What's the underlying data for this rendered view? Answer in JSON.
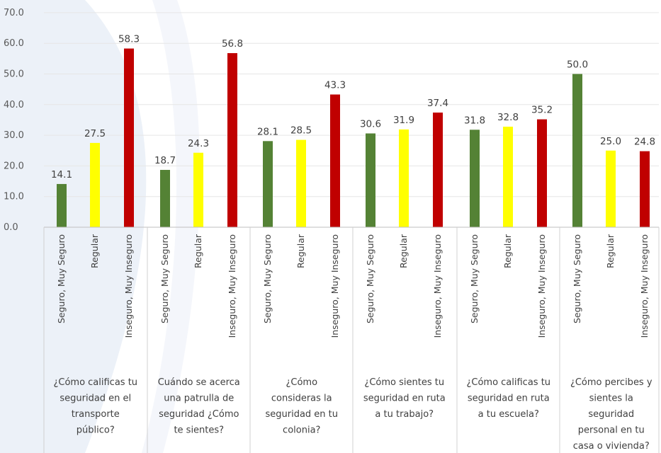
{
  "chart_data": {
    "type": "bar",
    "title": "",
    "xlabel": "",
    "ylabel": "",
    "ylim": [
      0,
      70
    ],
    "yticks": [
      "0.0",
      "10.0",
      "20.0",
      "30.0",
      "40.0",
      "50.0",
      "60.0",
      "70.0"
    ],
    "grid": true,
    "legend": "none",
    "colors": {
      "Seguro, Muy Seguro": "#548235",
      "Regular": "#ffff00",
      "Inseguro, Muy Inseguro": "#c00000"
    },
    "sub_categories": [
      "Seguro, Muy Seguro",
      "Regular",
      "Inseguro, Muy Inseguro"
    ],
    "groups": [
      {
        "label_lines": [
          "¿Cómo calificas tu",
          "seguridad en el",
          "transporte",
          "público?"
        ],
        "values": [
          14.1,
          27.5,
          58.3
        ],
        "labels": [
          "14.1",
          "27.5",
          "58.3"
        ]
      },
      {
        "label_lines": [
          "Cuándo se acerca",
          "una patrulla de",
          "seguridad ¿Cómo",
          "te sientes?"
        ],
        "values": [
          18.7,
          24.3,
          56.8
        ],
        "labels": [
          "18.7",
          "24.3",
          "56.8"
        ]
      },
      {
        "label_lines": [
          "¿Cómo",
          "consideras la",
          "seguridad en tu",
          "colonia?"
        ],
        "values": [
          28.1,
          28.5,
          43.3
        ],
        "labels": [
          "28.1",
          "28.5",
          "43.3"
        ]
      },
      {
        "label_lines": [
          "¿Cómo sientes tu",
          "seguridad en ruta",
          "a tu trabajo?"
        ],
        "values": [
          30.6,
          31.9,
          37.4
        ],
        "labels": [
          "30.6",
          "31.9",
          "37.4"
        ]
      },
      {
        "label_lines": [
          "¿Cómo calificas tu",
          "seguridad en ruta",
          "a tu escuela?"
        ],
        "values": [
          31.8,
          32.8,
          35.2
        ],
        "labels": [
          "31.8",
          "32.8",
          "35.2"
        ]
      },
      {
        "label_lines": [
          "¿Cómo percibes y",
          "sientes la",
          "seguridad",
          "personal en tu",
          "casa o vivienda?"
        ],
        "values": [
          50.0,
          25.0,
          24.8
        ],
        "labels": [
          "50.0",
          "25.0",
          "24.8"
        ]
      }
    ]
  }
}
